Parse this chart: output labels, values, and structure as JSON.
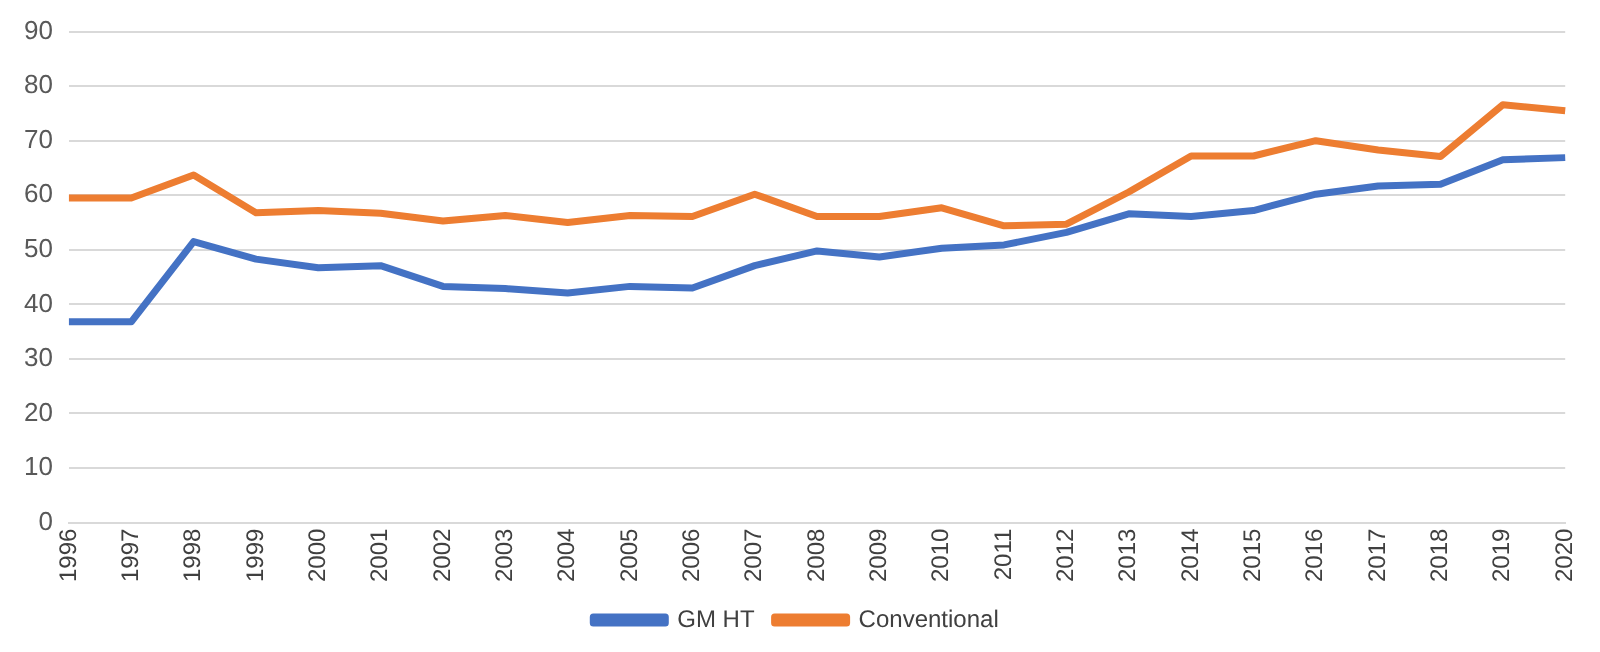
{
  "chart_data": {
    "type": "line",
    "categories": [
      "1996",
      "1997",
      "1998",
      "1999",
      "2000",
      "2001",
      "2002",
      "2003",
      "2004",
      "2005",
      "2006",
      "2007",
      "2008",
      "2009",
      "2010",
      "2011",
      "2012",
      "2013",
      "2014",
      "2015",
      "2016",
      "2017",
      "2018",
      "2019",
      "2020"
    ],
    "series": [
      {
        "name": "GM HT",
        "color": "#4472c4",
        "values": [
          36.8,
          36.8,
          51.5,
          48.3,
          46.7,
          47.1,
          43.3,
          42.9,
          42.1,
          43.3,
          43.0,
          47.1,
          49.8,
          48.7,
          50.3,
          50.9,
          53.2,
          56.6,
          56.1,
          57.2,
          60.2,
          61.7,
          62.0,
          66.5,
          66.9
        ]
      },
      {
        "name": "Conventional",
        "color": "#ed7d31",
        "values": [
          59.5,
          59.5,
          63.7,
          56.8,
          57.2,
          56.7,
          55.3,
          56.3,
          55.0,
          56.3,
          56.1,
          60.2,
          56.1,
          56.1,
          57.7,
          54.4,
          54.7,
          60.6,
          67.2,
          67.2,
          70.0,
          68.3,
          67.1,
          76.6,
          75.5
        ]
      }
    ],
    "ylim": [
      0,
      90
    ],
    "yticks": [
      0,
      10,
      20,
      30,
      40,
      50,
      60,
      70,
      80,
      90
    ],
    "grid": "y",
    "legend": "bottom",
    "marker": "none",
    "line_style": "solid"
  }
}
